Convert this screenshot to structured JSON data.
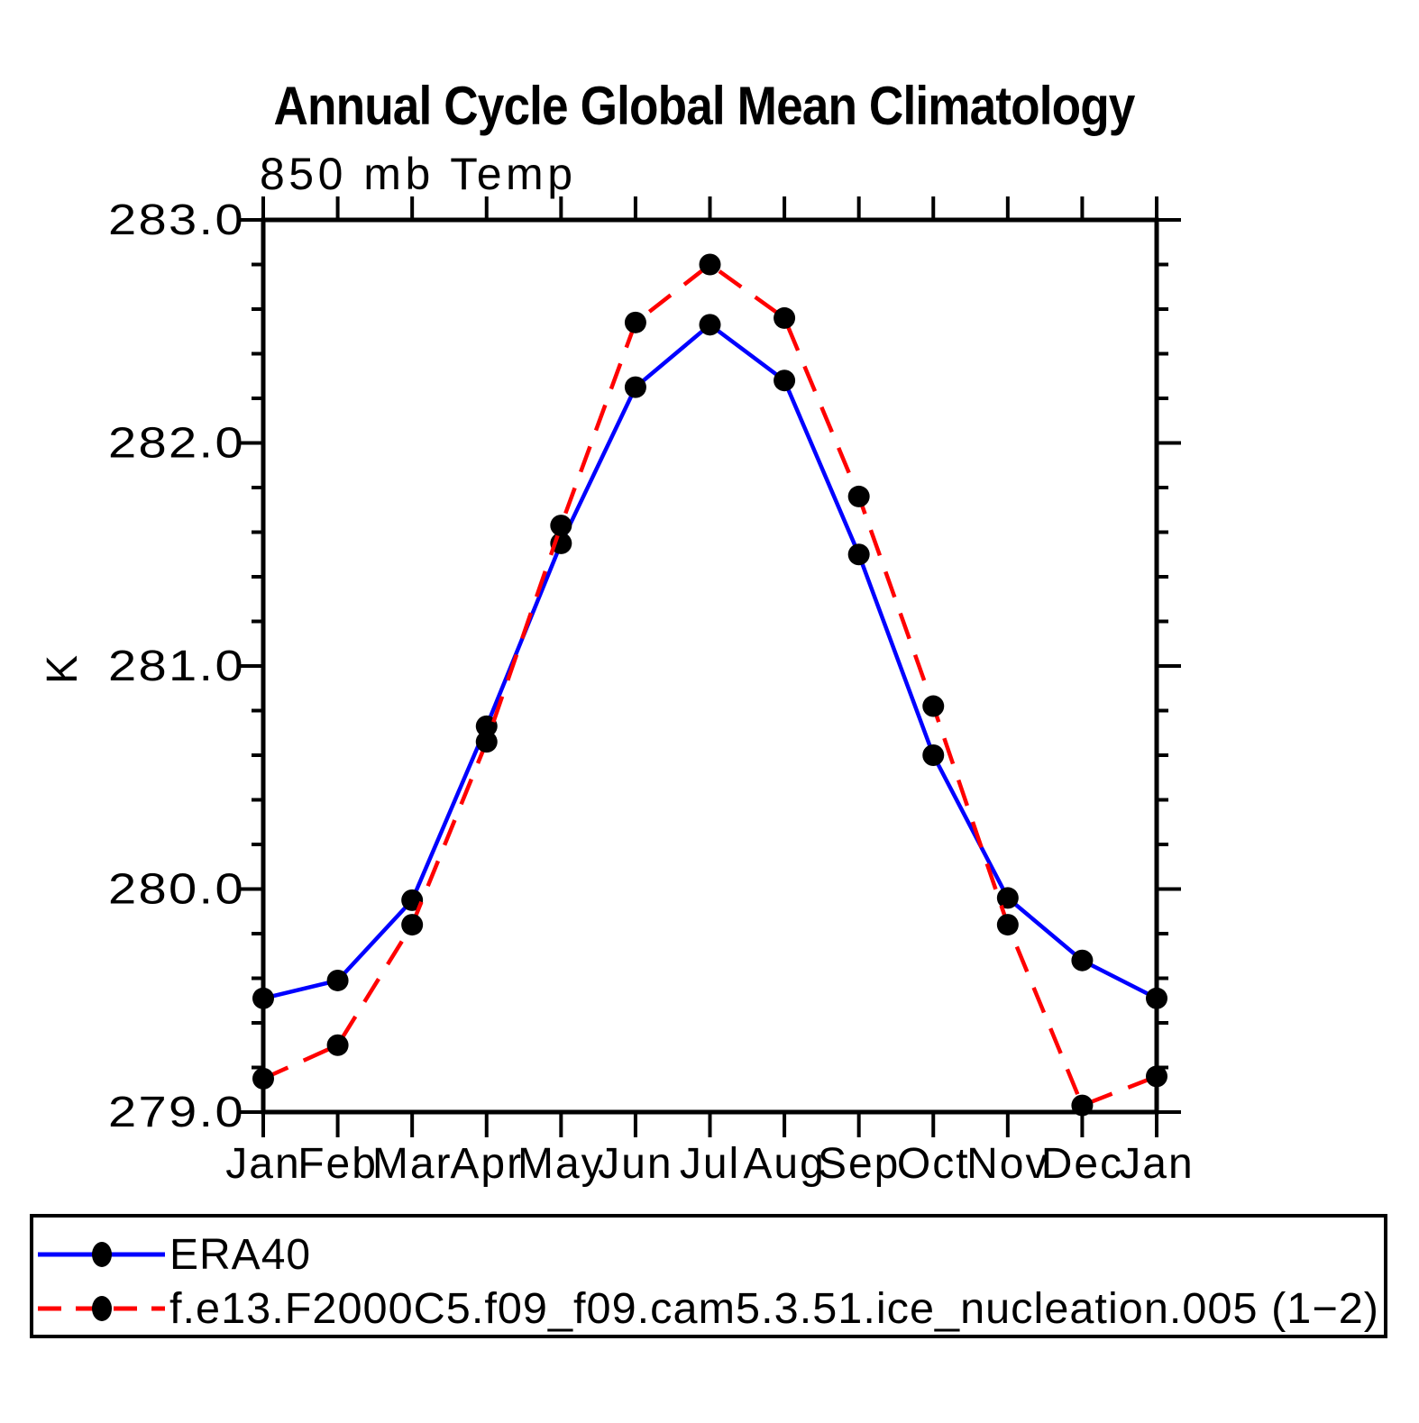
{
  "chart_data": {
    "type": "line",
    "title": "Annual Cycle Global Mean Climatology",
    "subtitle": "850 mb Temp",
    "xlabel": "",
    "ylabel": "K",
    "categories": [
      "Jan",
      "Feb",
      "Mar",
      "Apr",
      "May",
      "Jun",
      "Jul",
      "Aug",
      "Sep",
      "Oct",
      "Nov",
      "Dec",
      "Jan"
    ],
    "series": [
      {
        "name": "ERA40",
        "color": "#0000ff",
        "line_style": "solid",
        "marker": "circle",
        "marker_color": "#000000",
        "values": [
          279.51,
          279.59,
          279.95,
          280.73,
          281.55,
          282.25,
          282.53,
          282.28,
          281.5,
          280.6,
          279.96,
          279.68,
          279.51
        ]
      },
      {
        "name": "f.e13.F2000C5.f09_f09.cam5.3.51.ice_nucleation.005 (1−2)",
        "color": "#ff0000",
        "line_style": "dashed",
        "marker": "circle",
        "marker_color": "#000000",
        "values": [
          279.15,
          279.3,
          279.84,
          280.66,
          281.63,
          282.54,
          282.8,
          282.56,
          281.76,
          280.82,
          279.84,
          279.03,
          279.16
        ]
      }
    ],
    "ylim": [
      279.0,
      283.0
    ],
    "y_major_tick_step": 1.0,
    "y_minor_tick_step": 0.2,
    "y_tick_labels": [
      "279.0",
      "280.0",
      "281.0",
      "282.0",
      "283.0"
    ],
    "grid": false,
    "legend_position": "bottom",
    "axes_color": "#000000",
    "background_color": "#ffffff"
  }
}
